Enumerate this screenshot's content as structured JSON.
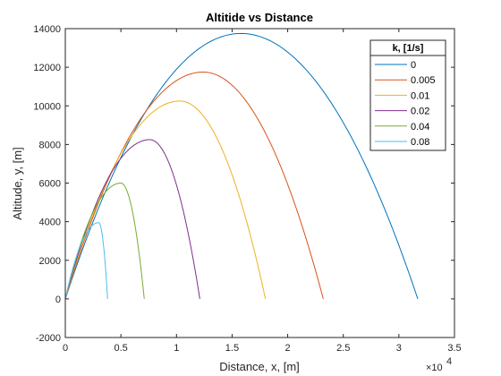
{
  "chart_data": {
    "type": "line",
    "title": "Altitide vs Distance",
    "xlabel": "Distance, x, [m]",
    "ylabel": "Altitude, y, [m]",
    "x_exponent_label": "×10",
    "x_exponent_power": "4",
    "xlim": [
      0,
      3.5
    ],
    "ylim": [
      -2000,
      14000
    ],
    "x_ticks": [
      0,
      0.5,
      1,
      1.5,
      2,
      2.5,
      3,
      3.5
    ],
    "x_tick_labels": [
      "0",
      "0.5",
      "1",
      "1.5",
      "2",
      "2.5",
      "3",
      "3.5"
    ],
    "y_ticks": [
      -2000,
      0,
      2000,
      4000,
      6000,
      8000,
      10000,
      12000,
      14000
    ],
    "y_tick_labels": [
      "-2000",
      "0",
      "2000",
      "4000",
      "6000",
      "8000",
      "10000",
      "12000",
      "14000"
    ],
    "x_units_note": "x values in units of 10^4 m",
    "grid": false,
    "legend": {
      "title": "k, [1/s]",
      "placement": "top-right"
    },
    "series": [
      {
        "name": "0",
        "color": "#0072BD",
        "range_x": 3.17,
        "apex_x": 1.58,
        "apex_y": 13750
      },
      {
        "name": "0.005",
        "color": "#D95319",
        "range_x": 2.32,
        "apex_x": 1.24,
        "apex_y": 11750
      },
      {
        "name": "0.01",
        "color": "#EDB120",
        "range_x": 1.8,
        "apex_x": 1.03,
        "apex_y": 10250
      },
      {
        "name": "0.02",
        "color": "#7E2F8E",
        "range_x": 1.21,
        "apex_x": 0.76,
        "apex_y": 8250
      },
      {
        "name": "0.04",
        "color": "#77AC30",
        "range_x": 0.71,
        "apex_x": 0.5,
        "apex_y": 6000
      },
      {
        "name": "0.08",
        "color": "#4DBEEE",
        "range_x": 0.38,
        "apex_x": 0.3,
        "apex_y": 3950
      }
    ]
  }
}
